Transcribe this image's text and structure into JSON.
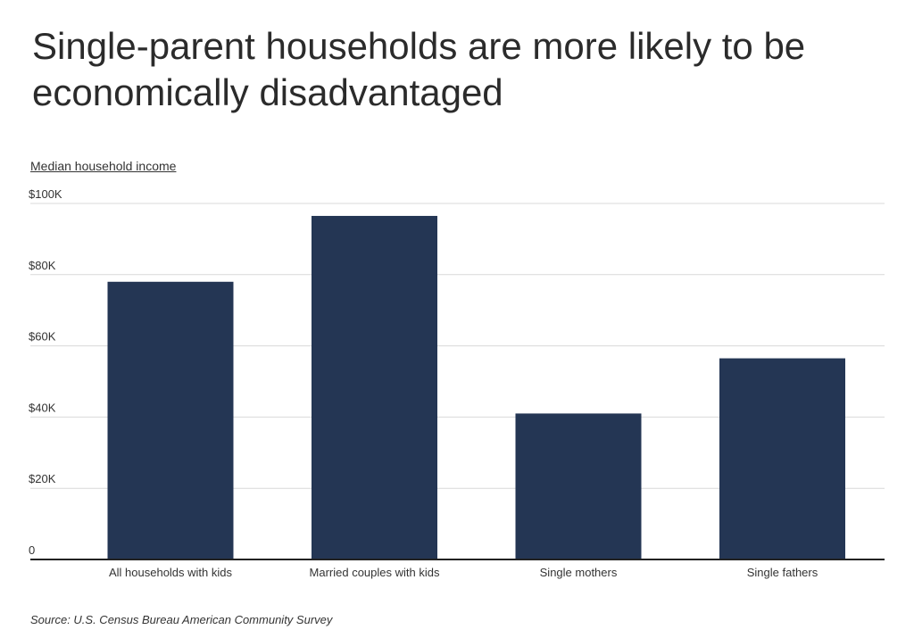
{
  "chart_data": {
    "type": "bar",
    "title": "Single-parent households are more likely to be economically disadvantaged",
    "ylabel": "Median household income",
    "xlabel": "",
    "categories": [
      "All households with kids",
      "Married couples with kids",
      "Single mothers",
      "Single fathers"
    ],
    "values": [
      78000,
      96500,
      41000,
      56500
    ],
    "ylim": [
      0,
      100000
    ],
    "yticks": [
      0,
      20000,
      40000,
      60000,
      80000,
      100000
    ],
    "ytick_labels": [
      "0",
      "$20K",
      "$40K",
      "$60K",
      "$80K",
      "$100K"
    ],
    "grid": true,
    "legend": "none",
    "bar_color": "#243654",
    "source": "Source: U.S. Census Bureau American Community Survey"
  }
}
